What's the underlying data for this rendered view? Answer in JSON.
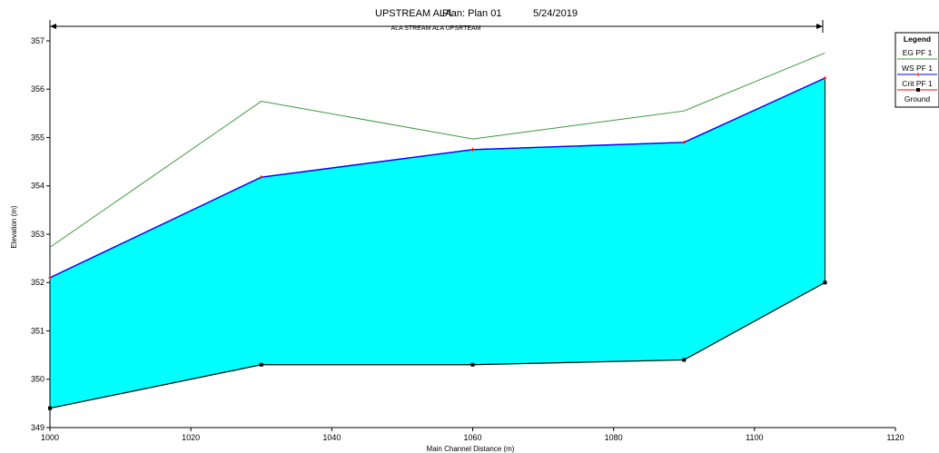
{
  "chart_data": {
    "type": "line",
    "title": "UPSTREAM ALA",
    "plan_label": "Plan: Plan 01",
    "date": "5/24/2019",
    "reach_label": "ALA STREAM ALA UPSRTEAM",
    "xlabel": "Main Channel Distance (m)",
    "ylabel": "Elevation (m)",
    "xlim": [
      1000,
      1120
    ],
    "ylim": [
      349,
      357.3
    ],
    "xticks": [
      1000,
      1020,
      1040,
      1060,
      1080,
      1100,
      1120
    ],
    "yticks": [
      349,
      350,
      351,
      352,
      353,
      354,
      355,
      356,
      357
    ],
    "x": [
      1000,
      1030,
      1060,
      1090,
      1110
    ],
    "series": [
      {
        "name": "EG  PF 1",
        "color": "#3c9a3c",
        "values": [
          352.73,
          355.75,
          354.97,
          355.55,
          356.75
        ]
      },
      {
        "name": "WS  PF 1",
        "color": "#0000ff",
        "values": [
          352.1,
          354.18,
          354.75,
          354.9,
          356.23
        ]
      },
      {
        "name": "Crit  PF 1",
        "color": "#ff0000",
        "values": [
          352.1,
          354.18,
          354.75,
          354.9,
          356.23
        ]
      },
      {
        "name": "Ground",
        "color": "#000000",
        "values": [
          349.4,
          350.3,
          350.3,
          350.4,
          352.0
        ]
      }
    ],
    "water_fill_color": "#00ffff",
    "legend": {
      "title": "Legend",
      "position": "top-right"
    },
    "grid": false
  }
}
